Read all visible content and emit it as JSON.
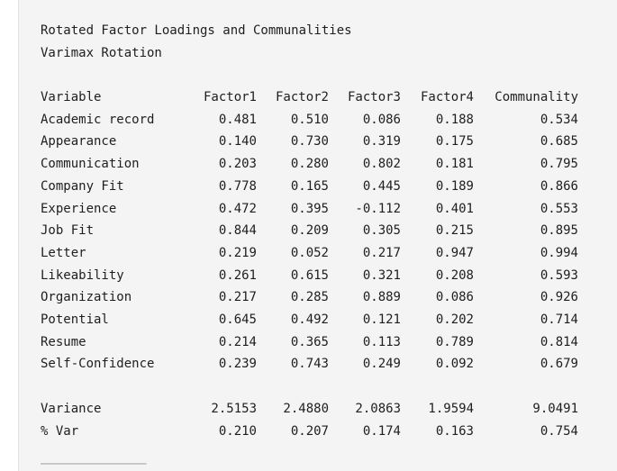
{
  "title": "Rotated Factor Loadings and Communalities",
  "subtitle": "Varimax Rotation",
  "columns": [
    "Variable",
    "Factor1",
    "Factor2",
    "Factor3",
    "Factor4",
    "Communality"
  ],
  "rows": [
    [
      "Academic record",
      "0.481",
      "0.510",
      "0.086",
      "0.188",
      "0.534"
    ],
    [
      "Appearance",
      "0.140",
      "0.730",
      "0.319",
      "0.175",
      "0.685"
    ],
    [
      "Communication",
      "0.203",
      "0.280",
      "0.802",
      "0.181",
      "0.795"
    ],
    [
      "Company Fit",
      "0.778",
      "0.165",
      "0.445",
      "0.189",
      "0.866"
    ],
    [
      "Experience",
      "0.472",
      "0.395",
      "-0.112",
      "0.401",
      "0.553"
    ],
    [
      "Job Fit",
      "0.844",
      "0.209",
      "0.305",
      "0.215",
      "0.895"
    ],
    [
      "Letter",
      "0.219",
      "0.052",
      "0.217",
      "0.947",
      "0.994"
    ],
    [
      "Likeability",
      "0.261",
      "0.615",
      "0.321",
      "0.208",
      "0.593"
    ],
    [
      "Organization",
      "0.217",
      "0.285",
      "0.889",
      "0.086",
      "0.926"
    ],
    [
      "Potential",
      "0.645",
      "0.492",
      "0.121",
      "0.202",
      "0.714"
    ],
    [
      "Resume",
      "0.214",
      "0.365",
      "0.113",
      "0.789",
      "0.814"
    ],
    [
      "Self-Confidence",
      "0.239",
      "0.743",
      "0.249",
      "0.092",
      "0.679"
    ]
  ],
  "summary": [
    [
      "Variance",
      "2.5153",
      "2.4880",
      "2.0863",
      "1.9594",
      "9.0491"
    ],
    [
      "% Var",
      "0.210",
      "0.207",
      "0.174",
      "0.163",
      "0.754"
    ]
  ]
}
